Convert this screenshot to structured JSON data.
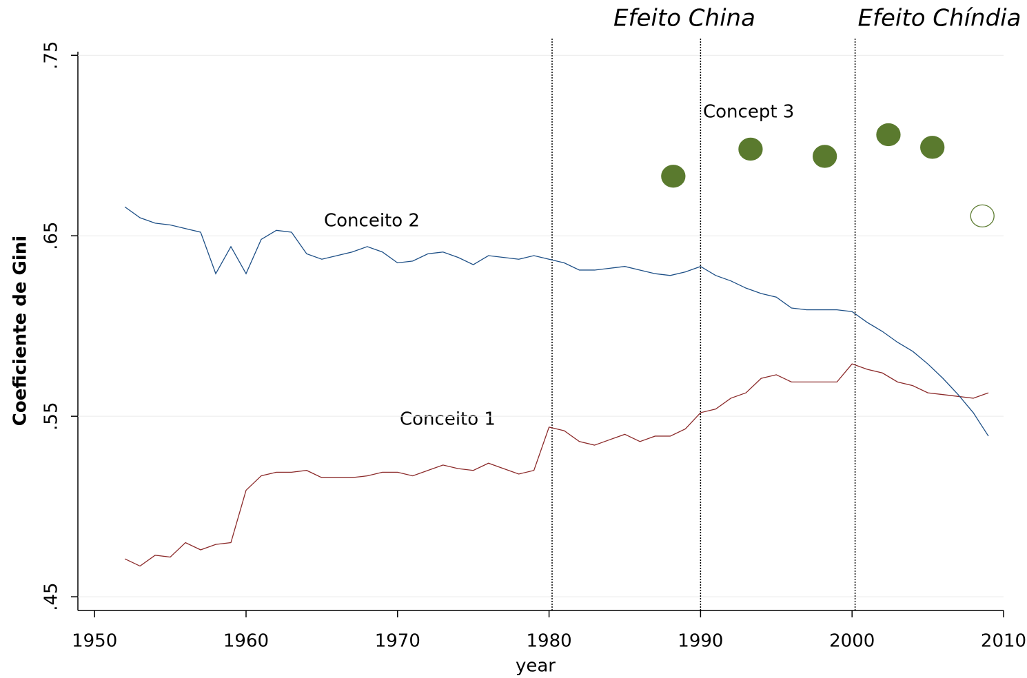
{
  "chart_data": {
    "type": "line",
    "x_label": "year",
    "y_label": "Coeficiente de Gini",
    "annotations": [
      "Efeito China",
      "Efeito Chíndia"
    ],
    "xlim": [
      1948.9,
      2010
    ],
    "ylim": [
      0.4424,
      0.752
    ],
    "xticks": [
      1950,
      1960,
      1970,
      1980,
      1990,
      2000,
      2010
    ],
    "yticks": [
      {
        "value": 0.45,
        "label": ".45"
      },
      {
        "value": 0.55,
        "label": ".55"
      },
      {
        "value": 0.65,
        "label": ".65"
      },
      {
        "value": 0.75,
        "label": ".75"
      }
    ],
    "grid": true,
    "vlines": [
      1980.2,
      1990,
      2000.2
    ],
    "x": [
      1952,
      1953,
      1954,
      1955,
      1956,
      1957,
      1958,
      1959,
      1960,
      1961,
      1962,
      1963,
      1964,
      1965,
      1966,
      1967,
      1968,
      1969,
      1970,
      1971,
      1972,
      1973,
      1974,
      1975,
      1976,
      1977,
      1978,
      1979,
      1980,
      1981,
      1982,
      1983,
      1984,
      1985,
      1986,
      1987,
      1988,
      1989,
      1990,
      1991,
      1992,
      1993,
      1994,
      1995,
      1996,
      1997,
      1998,
      1999,
      2000,
      2001,
      2002,
      2003,
      2004,
      2005,
      2006,
      2007,
      2008,
      2009
    ],
    "series": [
      {
        "name": "Conceito 1",
        "type": "line",
        "color": "#8b2a2a",
        "values": [
          0.471,
          0.467,
          0.473,
          0.472,
          0.48,
          0.476,
          0.479,
          0.48,
          0.509,
          0.517,
          0.519,
          0.519,
          0.52,
          0.516,
          0.516,
          0.516,
          0.517,
          0.519,
          0.519,
          0.517,
          0.52,
          0.523,
          0.521,
          0.52,
          0.524,
          0.521,
          0.518,
          0.52,
          0.544,
          0.542,
          0.536,
          0.534,
          0.537,
          0.54,
          0.536,
          0.539,
          0.539,
          0.543,
          0.552,
          0.554,
          0.56,
          0.563,
          0.571,
          0.573,
          0.569,
          0.569,
          0.569,
          0.569,
          0.579,
          0.576,
          0.574,
          0.569,
          0.567,
          0.563,
          0.562,
          0.561,
          0.56,
          0.563
        ]
      },
      {
        "name": "Conceito 2",
        "type": "line",
        "color": "#1d4f86",
        "values": [
          0.666,
          0.66,
          0.657,
          0.656,
          0.654,
          0.652,
          0.629,
          0.644,
          0.629,
          0.648,
          0.653,
          0.652,
          0.64,
          0.637,
          0.639,
          0.641,
          0.644,
          0.641,
          0.635,
          0.636,
          0.64,
          0.641,
          0.638,
          0.634,
          0.639,
          0.638,
          0.637,
          0.639,
          0.637,
          0.635,
          0.631,
          0.631,
          0.632,
          0.633,
          0.631,
          0.629,
          0.628,
          0.63,
          0.633,
          0.628,
          0.625,
          0.621,
          0.618,
          0.616,
          0.61,
          0.609,
          0.609,
          0.609,
          0.608,
          0.602,
          0.597,
          0.591,
          0.586,
          0.579,
          0.571,
          0.562,
          0.552,
          0.539
        ]
      },
      {
        "name": "Concept 3",
        "type": "scatter",
        "color": "#5a7a2e",
        "x": [
          1988.2,
          1993.3,
          1998.2,
          2002.4,
          2005.3,
          2008.6
        ],
        "values": [
          0.683,
          0.698,
          0.694,
          0.706,
          0.699,
          0.661
        ],
        "marker_fill": [
          "#5a7a2e",
          "#5a7a2e",
          "#5a7a2e",
          "#5a7a2e",
          "#5a7a2e",
          "none"
        ]
      }
    ]
  }
}
